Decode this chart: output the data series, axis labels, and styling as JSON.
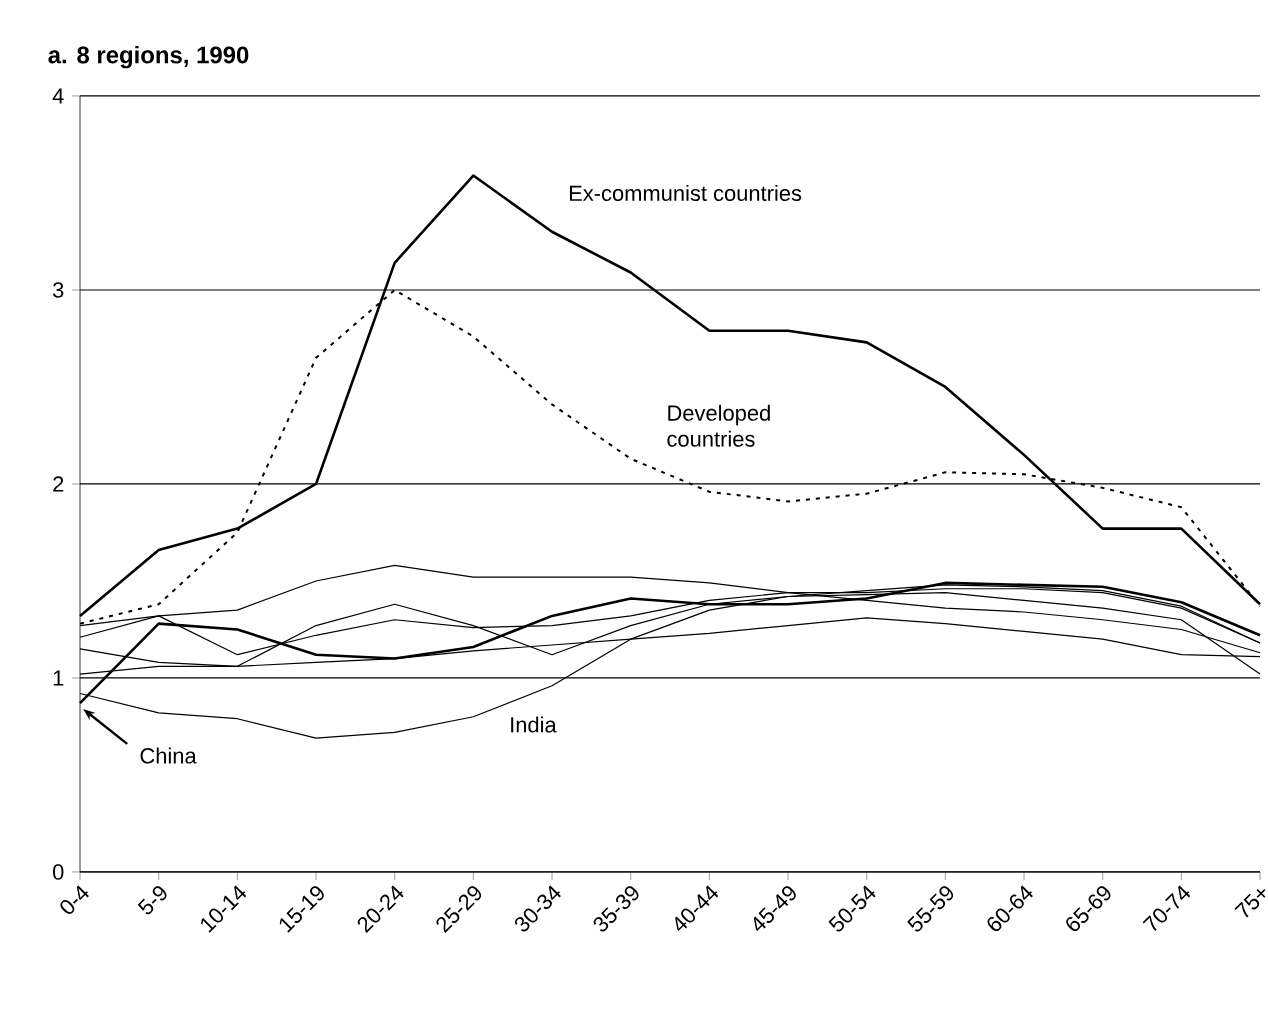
{
  "chart_data": {
    "type": "line",
    "title": "a. 8 regions, 1990",
    "categories": [
      "0-4",
      "5-9",
      "10-14",
      "15-19",
      "20-24",
      "25-29",
      "30-34",
      "35-39",
      "40-44",
      "45-49",
      "50-54",
      "55-59",
      "60-64",
      "65-69",
      "70-74",
      "75+"
    ],
    "ylim": [
      0,
      4
    ],
    "yticks": [
      0,
      1,
      2,
      3,
      4
    ],
    "grid": "y",
    "legend": false,
    "marker": "none",
    "series": [
      {
        "name": "Ex-communist countries",
        "color": "#000000",
        "line_style": "solid",
        "values": [
          1.32,
          1.66,
          1.77,
          2.0,
          3.14,
          3.59,
          3.3,
          3.09,
          2.79,
          2.79,
          2.73,
          2.5,
          2.15,
          1.77,
          1.77,
          1.38
        ]
      },
      {
        "name": "Developed countries",
        "color": "#000000",
        "line_style": "dotted",
        "values": [
          1.28,
          1.38,
          1.75,
          2.65,
          3.0,
          2.76,
          2.41,
          2.13,
          1.96,
          1.91,
          1.95,
          2.06,
          2.05,
          1.98,
          1.88,
          1.37
        ]
      },
      {
        "name": "China",
        "color": "#000000",
        "line_style": "solid",
        "values": [
          0.87,
          1.28,
          1.25,
          1.12,
          1.1,
          1.16,
          1.32,
          1.41,
          1.38,
          1.38,
          1.41,
          1.49,
          1.48,
          1.47,
          1.39,
          1.22
        ]
      },
      {
        "name": "India",
        "color": "#000000",
        "line_style": "solid",
        "values": [
          0.92,
          0.82,
          0.79,
          0.69,
          0.72,
          0.8,
          0.96,
          1.2,
          1.35,
          1.42,
          1.43,
          1.44,
          1.4,
          1.36,
          1.3,
          1.02
        ]
      },
      {
        "color": "#000000",
        "line_style": "solid",
        "values": [
          1.21,
          1.32,
          1.35,
          1.5,
          1.58,
          1.52,
          1.52,
          1.52,
          1.49,
          1.44,
          1.4,
          1.36,
          1.34,
          1.3,
          1.25,
          1.13
        ]
      },
      {
        "color": "#000000",
        "line_style": "solid",
        "values": [
          1.15,
          1.08,
          1.06,
          1.27,
          1.38,
          1.27,
          1.12,
          1.27,
          1.38,
          1.42,
          1.45,
          1.48,
          1.47,
          1.45,
          1.37,
          1.18
        ]
      },
      {
        "color": "#000000",
        "line_style": "solid",
        "values": [
          1.27,
          1.32,
          1.12,
          1.22,
          1.3,
          1.26,
          1.27,
          1.32,
          1.4,
          1.44,
          1.44,
          1.46,
          1.46,
          1.44,
          1.36,
          1.18
        ]
      },
      {
        "color": "#000000",
        "line_style": "solid",
        "values": [
          1.02,
          1.06,
          1.06,
          1.08,
          1.1,
          1.14,
          1.17,
          1.2,
          1.23,
          1.27,
          1.31,
          1.28,
          1.24,
          1.2,
          1.12,
          1.11
        ]
      }
    ]
  }
}
